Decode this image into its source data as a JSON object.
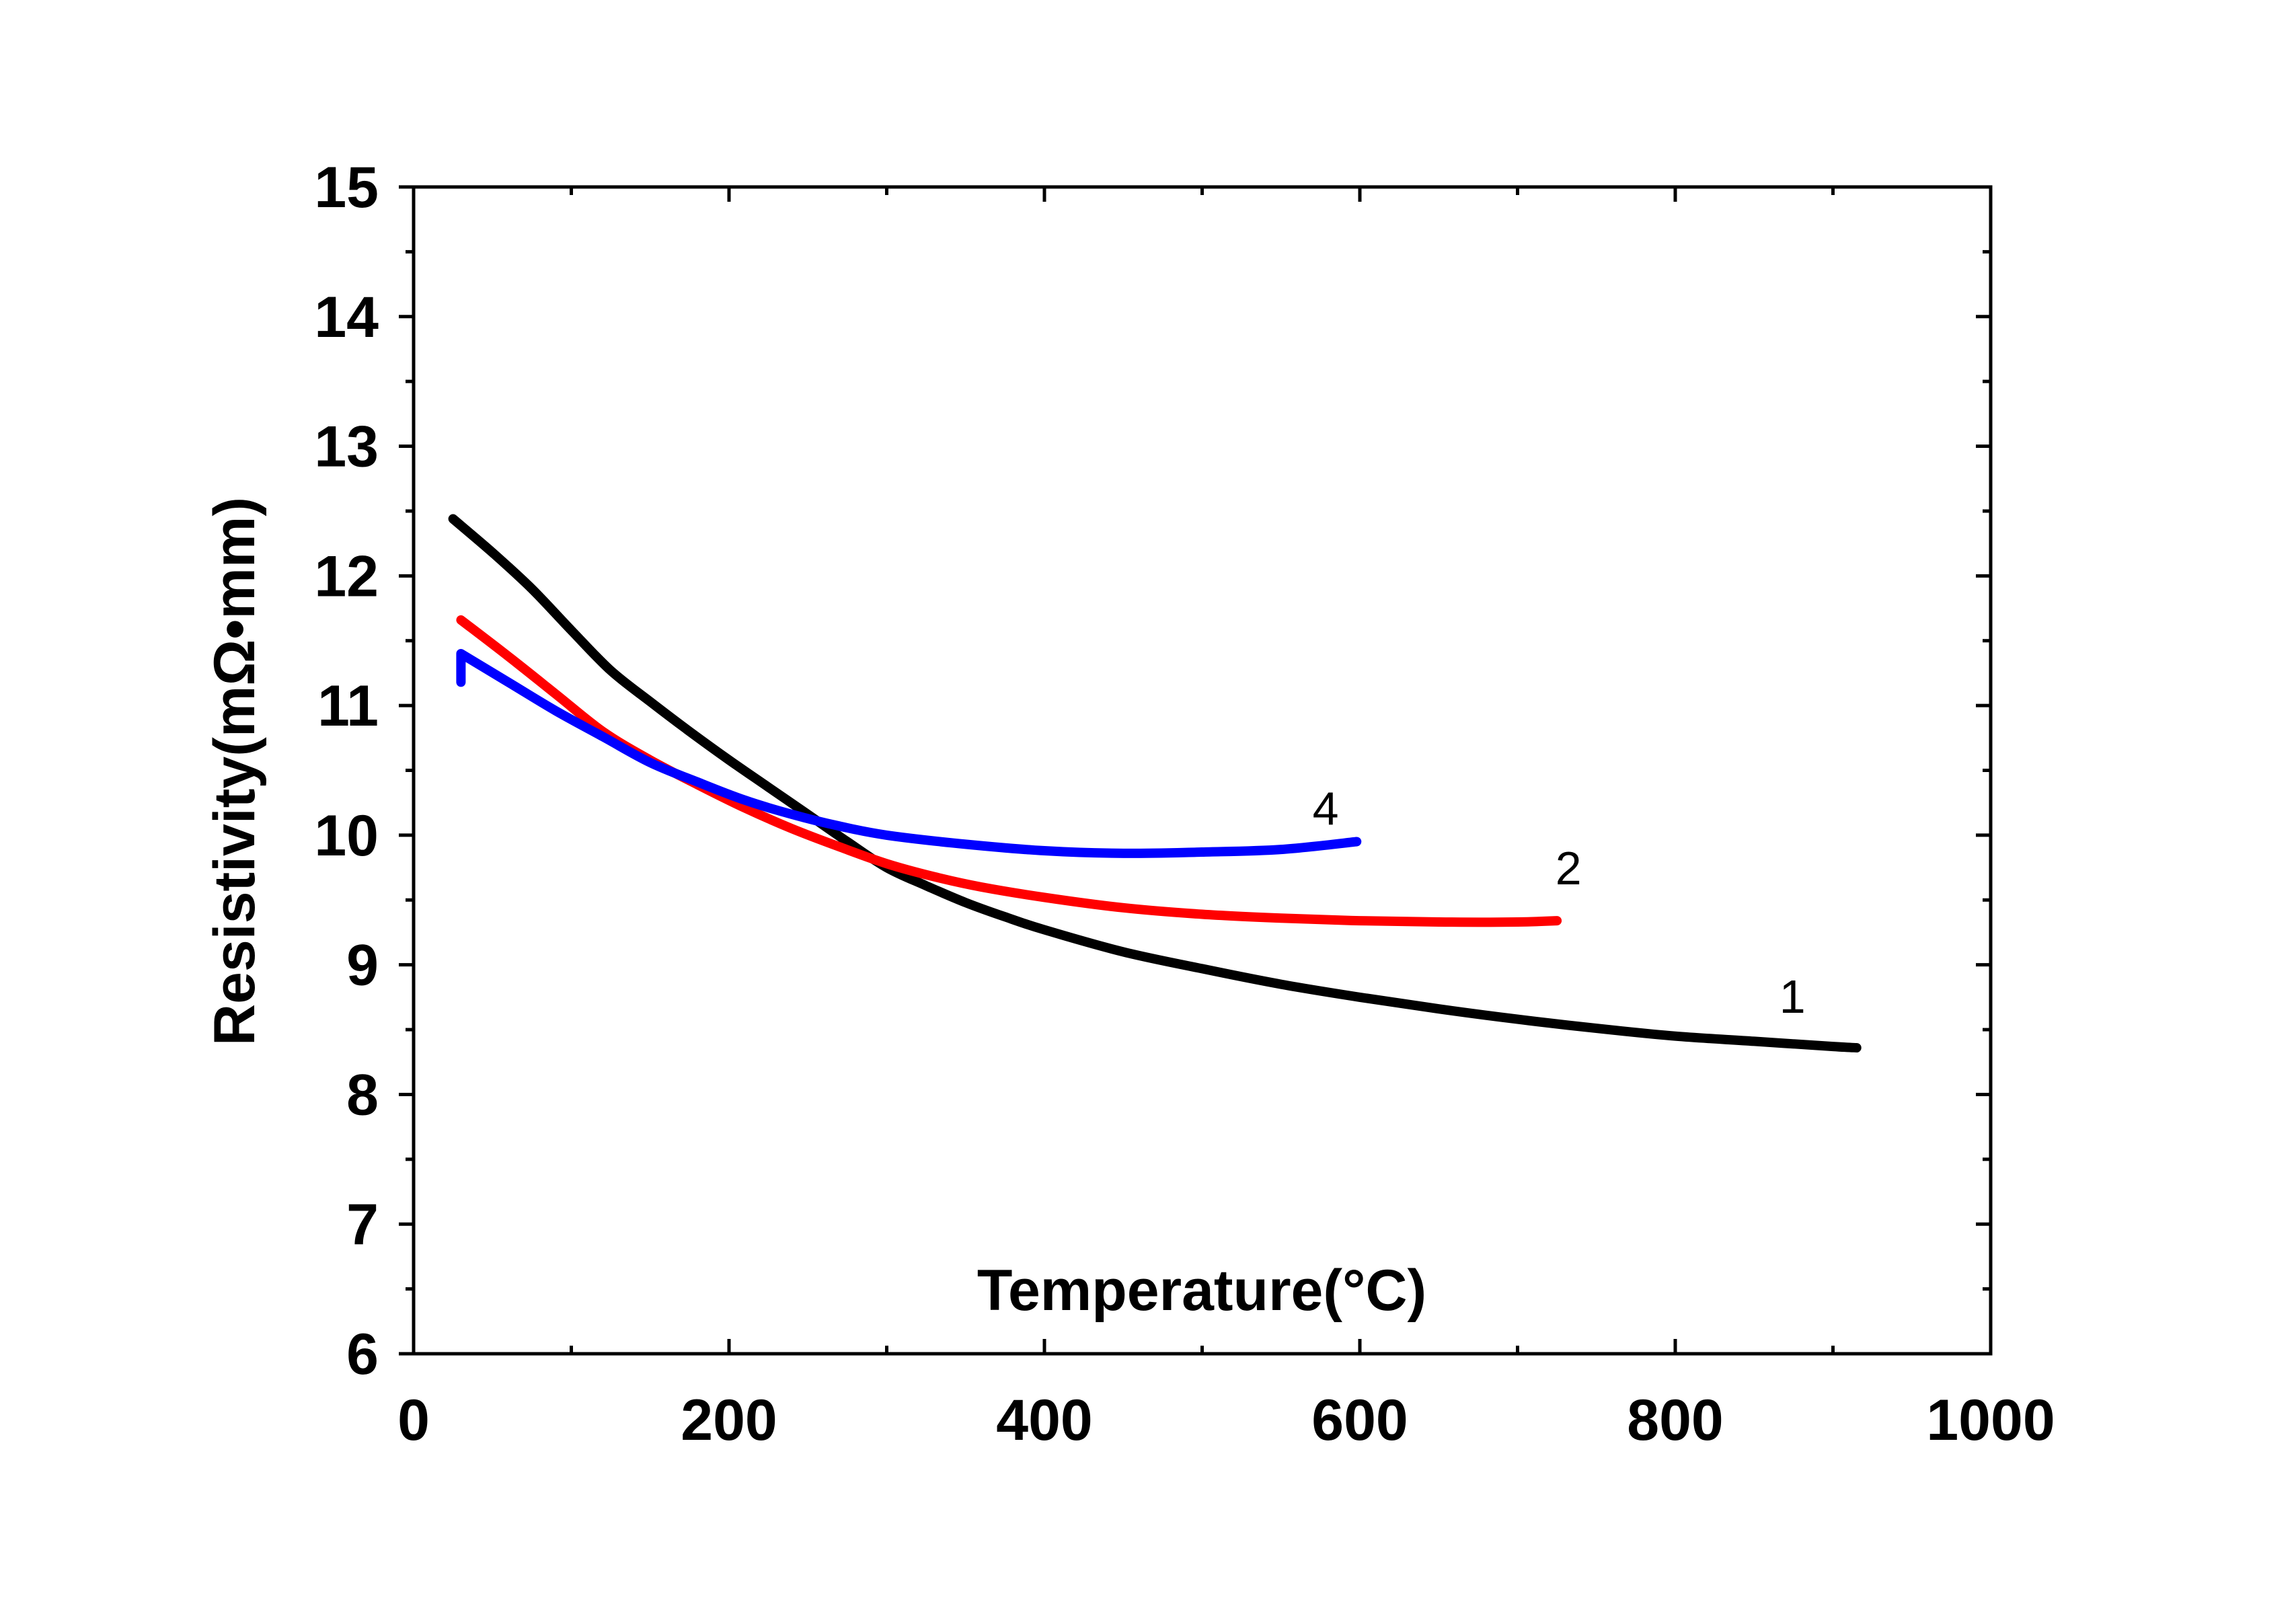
{
  "chart_data": {
    "type": "line",
    "title": "",
    "xlabel": "Temperature(°C)",
    "ylabel": "Resistivity(mΩ•mm)",
    "xlim": [
      0,
      1000
    ],
    "ylim": [
      6,
      15
    ],
    "x_ticks": [
      0,
      200,
      400,
      600,
      800,
      1000
    ],
    "y_ticks": [
      6,
      7,
      8,
      9,
      10,
      11,
      12,
      13,
      14,
      15
    ],
    "grid": false,
    "legend": "none",
    "series": [
      {
        "name": "1",
        "label": "1",
        "color": "#000000",
        "label_at": [
          866,
          8.63
        ],
        "points": [
          [
            25,
            12.44
          ],
          [
            50,
            12.18
          ],
          [
            75,
            11.9
          ],
          [
            100,
            11.58
          ],
          [
            125,
            11.27
          ],
          [
            150,
            11.03
          ],
          [
            175,
            10.8
          ],
          [
            200,
            10.58
          ],
          [
            225,
            10.37
          ],
          [
            250,
            10.16
          ],
          [
            275,
            9.95
          ],
          [
            300,
            9.75
          ],
          [
            325,
            9.61
          ],
          [
            350,
            9.48
          ],
          [
            375,
            9.37
          ],
          [
            400,
            9.27
          ],
          [
            450,
            9.1
          ],
          [
            500,
            8.97
          ],
          [
            550,
            8.85
          ],
          [
            600,
            8.75
          ],
          [
            650,
            8.66
          ],
          [
            700,
            8.58
          ],
          [
            750,
            8.51
          ],
          [
            800,
            8.45
          ],
          [
            850,
            8.41
          ],
          [
            900,
            8.37
          ],
          [
            915,
            8.36
          ]
        ]
      },
      {
        "name": "2",
        "label": "2",
        "color": "#ff0000",
        "label_at": [
          724,
          9.62
        ],
        "points": [
          [
            30,
            11.66
          ],
          [
            60,
            11.38
          ],
          [
            90,
            11.09
          ],
          [
            120,
            10.8
          ],
          [
            150,
            10.58
          ],
          [
            180,
            10.39
          ],
          [
            210,
            10.21
          ],
          [
            240,
            10.05
          ],
          [
            270,
            9.91
          ],
          [
            300,
            9.78
          ],
          [
            330,
            9.68
          ],
          [
            360,
            9.6
          ],
          [
            400,
            9.52
          ],
          [
            450,
            9.44
          ],
          [
            500,
            9.39
          ],
          [
            550,
            9.36
          ],
          [
            600,
            9.34
          ],
          [
            650,
            9.33
          ],
          [
            700,
            9.33
          ],
          [
            725,
            9.34
          ]
        ]
      },
      {
        "name": "4",
        "label": "4",
        "color": "#0000ff",
        "label_at": [
          570,
          10.08
        ],
        "points": [
          [
            30,
            11.18
          ],
          [
            30,
            11.4
          ],
          [
            60,
            11.18
          ],
          [
            90,
            10.96
          ],
          [
            120,
            10.76
          ],
          [
            150,
            10.56
          ],
          [
            180,
            10.41
          ],
          [
            210,
            10.27
          ],
          [
            240,
            10.16
          ],
          [
            270,
            10.07
          ],
          [
            300,
            10.0
          ],
          [
            350,
            9.93
          ],
          [
            400,
            9.88
          ],
          [
            450,
            9.86
          ],
          [
            500,
            9.87
          ],
          [
            550,
            9.89
          ],
          [
            598,
            9.95
          ]
        ]
      }
    ]
  }
}
